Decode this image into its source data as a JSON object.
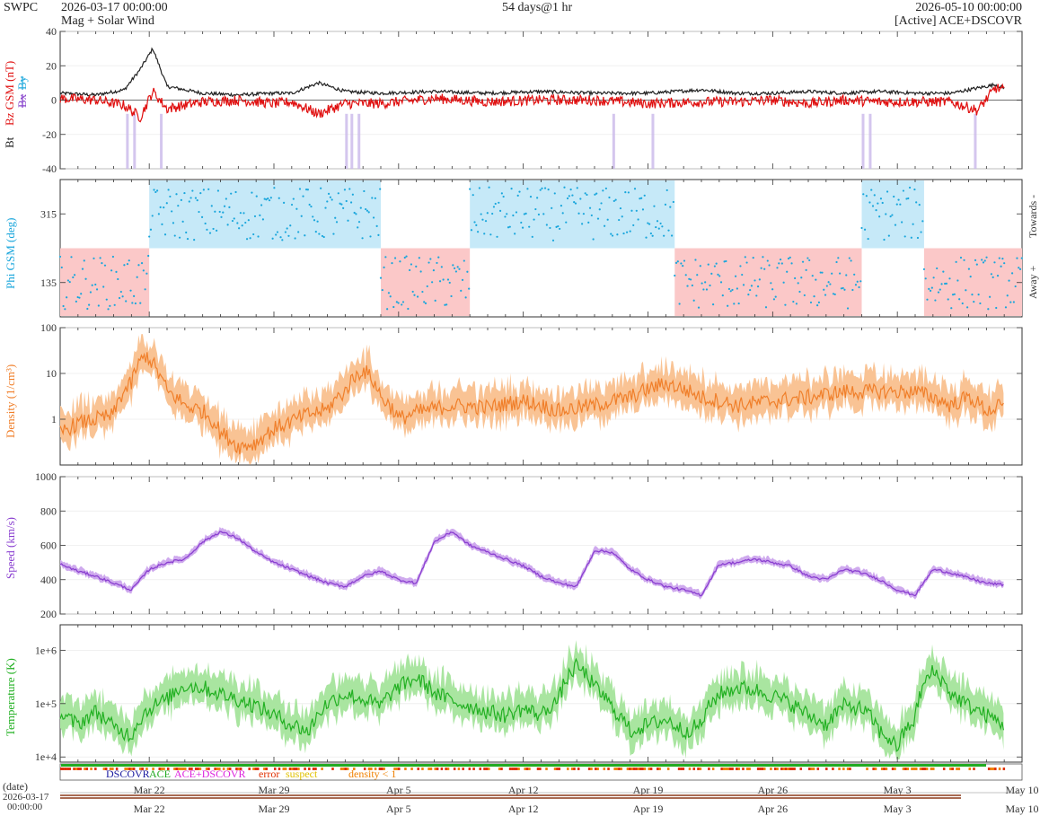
{
  "header": {
    "brand": "SWPC",
    "start": "2026-03-17 00:00:00",
    "product": "Mag + Solar Wind",
    "span": "54 days@1 hr",
    "end": "2026-05-10 00:00:00",
    "source": "[Active] ACE+DSCOVR"
  },
  "legend": {
    "dscovr": "DSCOVR",
    "ace": "ACE",
    "ace_dscovr": "ACE+DSCOVR",
    "error": "error",
    "suspect": "suspect",
    "density": "density < 1"
  },
  "footer": {
    "date_label": "(date)",
    "start_date": "2026-03-17",
    "start_time": "00:00:00"
  },
  "colors": {
    "bt": "#222222",
    "bz": "#e01010",
    "bx": "#8844cc",
    "by": "#22aadd",
    "phi": "#19a6dc",
    "towards": "#c6e9f8",
    "away": "#fbc8c8",
    "density": "#f07f2a",
    "density_band": "#f9c394",
    "speed": "#8a3fd0",
    "speed_band": "#cfaaee",
    "temperature": "#22b022",
    "temperature_band": "#a9e5a0",
    "status_green": "#22aa22",
    "status_red": "#e03000",
    "status_orange": "#f08000"
  },
  "chart_data": [
    {
      "type": "line",
      "id": "mag",
      "ylabel_parts": [
        "Bt",
        "Bz GSM (nT)",
        "Bx",
        "By"
      ],
      "ylim": [
        -40,
        40
      ],
      "yticks": [
        -40,
        -20,
        0,
        20,
        40
      ],
      "series": [
        {
          "name": "Bt",
          "x_day": [
            0,
            2,
            3.6,
            4.5,
            5.2,
            6,
            8,
            10,
            12,
            13,
            14.5,
            16,
            18,
            21,
            24,
            27,
            30,
            33,
            36,
            38,
            40,
            42,
            44,
            46,
            48,
            50,
            52,
            52.5,
            53
          ],
          "values": [
            4,
            3,
            6,
            18,
            30,
            8,
            4,
            3,
            4,
            4,
            10,
            5,
            4,
            5,
            4,
            5,
            4,
            4,
            6,
            4,
            4,
            5,
            4,
            5,
            4,
            4,
            8,
            9,
            7
          ]
        },
        {
          "name": "Bz GSM",
          "x_day": [
            0,
            2,
            3.6,
            4.5,
            5.2,
            6,
            8,
            10,
            12,
            13,
            14.5,
            16,
            18,
            21,
            24,
            27,
            30,
            33,
            36,
            38,
            40,
            42,
            44,
            46,
            48,
            50,
            51.5,
            52.5,
            53
          ],
          "values": [
            1,
            0,
            -3,
            -10,
            5,
            -5,
            -1,
            0,
            -2,
            -1,
            -8,
            -2,
            -2,
            1,
            -1,
            0,
            0,
            -2,
            -1,
            -1,
            0,
            -2,
            0,
            -1,
            -1,
            -1,
            -6,
            7,
            6
          ]
        }
      ]
    },
    {
      "type": "scatter",
      "id": "phi",
      "ylabel": "Phi GSM (deg)",
      "yticks": [
        135,
        315
      ],
      "ylim": [
        45,
        405
      ],
      "side_labels": [
        "Towards -",
        "Away +"
      ],
      "sectors": [
        {
          "from": 0,
          "to": 5,
          "sector": "away"
        },
        {
          "from": 5,
          "to": 18,
          "sector": "towards"
        },
        {
          "from": 18,
          "to": 23,
          "sector": "away"
        },
        {
          "from": 23,
          "to": 34.5,
          "sector": "towards"
        },
        {
          "from": 34.5,
          "to": 45,
          "sector": "away"
        },
        {
          "from": 45,
          "to": 48.5,
          "sector": "towards"
        },
        {
          "from": 48.5,
          "to": 54,
          "sector": "away"
        }
      ]
    },
    {
      "type": "line",
      "id": "density",
      "ylabel": "Density (1/cm³)",
      "scale": "log",
      "ylim": [
        0.1,
        100
      ],
      "yticks": [
        1,
        10,
        100
      ],
      "x_day": [
        0,
        1,
        2,
        3,
        4,
        4.8,
        5.5,
        6,
        7,
        8,
        9,
        10,
        11,
        12,
        13,
        14,
        15,
        16,
        17,
        18,
        19,
        20,
        22,
        24,
        26,
        28,
        30,
        32,
        34,
        36,
        38,
        40,
        42,
        44,
        46,
        48,
        50,
        51,
        52,
        53
      ],
      "values": [
        0.5,
        0.8,
        1,
        1.2,
        6,
        25,
        10,
        4,
        2,
        1.5,
        0.5,
        0.25,
        0.3,
        0.6,
        0.9,
        1.3,
        1.6,
        4,
        12,
        3,
        1,
        1.4,
        2,
        1.8,
        2.5,
        1.5,
        2,
        3,
        6,
        3,
        2,
        2.5,
        3,
        4,
        4,
        4,
        2,
        3,
        1.5,
        2
      ]
    },
    {
      "type": "line",
      "id": "speed",
      "ylabel": "Speed (km/s)",
      "ylim": [
        200,
        1000
      ],
      "yticks": [
        200,
        400,
        600,
        800,
        1000
      ],
      "x_day": [
        0,
        1,
        2,
        3,
        4,
        5,
        6,
        7,
        8,
        9,
        10,
        11,
        12,
        13,
        14,
        15,
        16,
        17,
        18,
        19,
        20,
        21,
        22,
        23,
        24,
        25,
        26,
        27,
        28,
        29,
        30,
        31,
        32,
        33,
        34,
        35,
        36,
        37,
        38,
        39,
        40,
        41,
        42,
        43,
        44,
        45,
        46,
        47,
        48,
        49,
        50,
        51,
        52,
        53
      ],
      "values": [
        490,
        450,
        420,
        380,
        340,
        460,
        500,
        520,
        620,
        680,
        640,
        560,
        500,
        460,
        420,
        380,
        360,
        420,
        450,
        400,
        380,
        620,
        680,
        600,
        560,
        520,
        480,
        420,
        380,
        360,
        570,
        560,
        460,
        400,
        360,
        340,
        310,
        490,
        500,
        520,
        500,
        480,
        420,
        400,
        460,
        440,
        400,
        340,
        310,
        460,
        440,
        410,
        380,
        370
      ]
    },
    {
      "type": "line",
      "id": "temperature",
      "ylabel": "Temperature (K)",
      "scale": "log",
      "ylim": [
        8000,
        3000000
      ],
      "yticks": [
        10000,
        100000,
        1000000
      ],
      "tick_labels": [
        "1e+4",
        "1e+5",
        "1e+6"
      ],
      "x_day": [
        0,
        1,
        2,
        3,
        4,
        5,
        6,
        7,
        8,
        9,
        10,
        11,
        12,
        13,
        14,
        15,
        16,
        17,
        18,
        19,
        20,
        21,
        22,
        23,
        24,
        25,
        26,
        27,
        28,
        29,
        30,
        31,
        32,
        33,
        34,
        35,
        36,
        37,
        38,
        39,
        40,
        41,
        42,
        43,
        44,
        45,
        46,
        47,
        48,
        49,
        50,
        51,
        52,
        53
      ],
      "values": [
        60000,
        40000,
        70000,
        35000,
        25000,
        80000,
        120000,
        220000,
        200000,
        150000,
        120000,
        90000,
        60000,
        40000,
        30000,
        100000,
        150000,
        120000,
        90000,
        200000,
        300000,
        160000,
        110000,
        90000,
        70000,
        60000,
        80000,
        60000,
        120000,
        500000,
        200000,
        80000,
        30000,
        40000,
        50000,
        30000,
        40000,
        150000,
        200000,
        180000,
        140000,
        100000,
        60000,
        40000,
        90000,
        80000,
        30000,
        15000,
        50000,
        400000,
        150000,
        90000,
        60000,
        40000
      ]
    }
  ],
  "x_axis": {
    "tick_labels": [
      "Mar 22",
      "Mar 29",
      "Apr 5",
      "Apr 12",
      "Apr 19",
      "Apr 26",
      "May 3",
      "May 10"
    ],
    "tick_days": [
      5,
      12,
      19,
      26,
      33,
      40,
      47,
      54
    ],
    "total_days": 54
  }
}
